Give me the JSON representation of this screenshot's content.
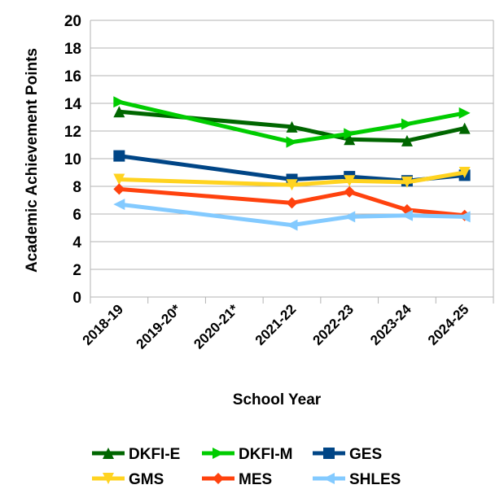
{
  "chart_data": {
    "type": "line",
    "title": "",
    "xlabel": "School Year",
    "ylabel": "Academic Achievement Points",
    "categories": [
      "2018-19",
      "2019-20*",
      "2020-21*",
      "2021-22",
      "2022-23",
      "2023-24",
      "2024-25"
    ],
    "ylim": [
      0,
      20
    ],
    "yticks": [
      0,
      2,
      4,
      6,
      8,
      10,
      12,
      14,
      16,
      18,
      20
    ],
    "grid": true,
    "legend_position": "bottom",
    "series": [
      {
        "name": "DKFI-E",
        "color": "#006600",
        "marker": "triangle-up",
        "values": [
          13.4,
          null,
          null,
          12.3,
          11.4,
          11.3,
          12.2
        ]
      },
      {
        "name": "DKFI-M",
        "color": "#00CC00",
        "marker": "triangle-right",
        "values": [
          14.1,
          null,
          null,
          11.2,
          11.8,
          12.5,
          13.3
        ]
      },
      {
        "name": "GES",
        "color": "#004586",
        "marker": "square",
        "values": [
          10.2,
          null,
          null,
          8.5,
          8.7,
          8.4,
          8.8
        ]
      },
      {
        "name": "GMS",
        "color": "#FFD320",
        "marker": "triangle-down",
        "values": [
          8.5,
          null,
          null,
          8.1,
          8.4,
          8.3,
          9.0
        ]
      },
      {
        "name": "MES",
        "color": "#FF420E",
        "marker": "diamond",
        "values": [
          7.8,
          null,
          null,
          6.8,
          7.6,
          6.3,
          5.9
        ]
      },
      {
        "name": "SHLES",
        "color": "#83CAFF",
        "marker": "triangle-left",
        "values": [
          6.7,
          null,
          null,
          5.2,
          5.8,
          5.9,
          5.8
        ]
      }
    ]
  }
}
